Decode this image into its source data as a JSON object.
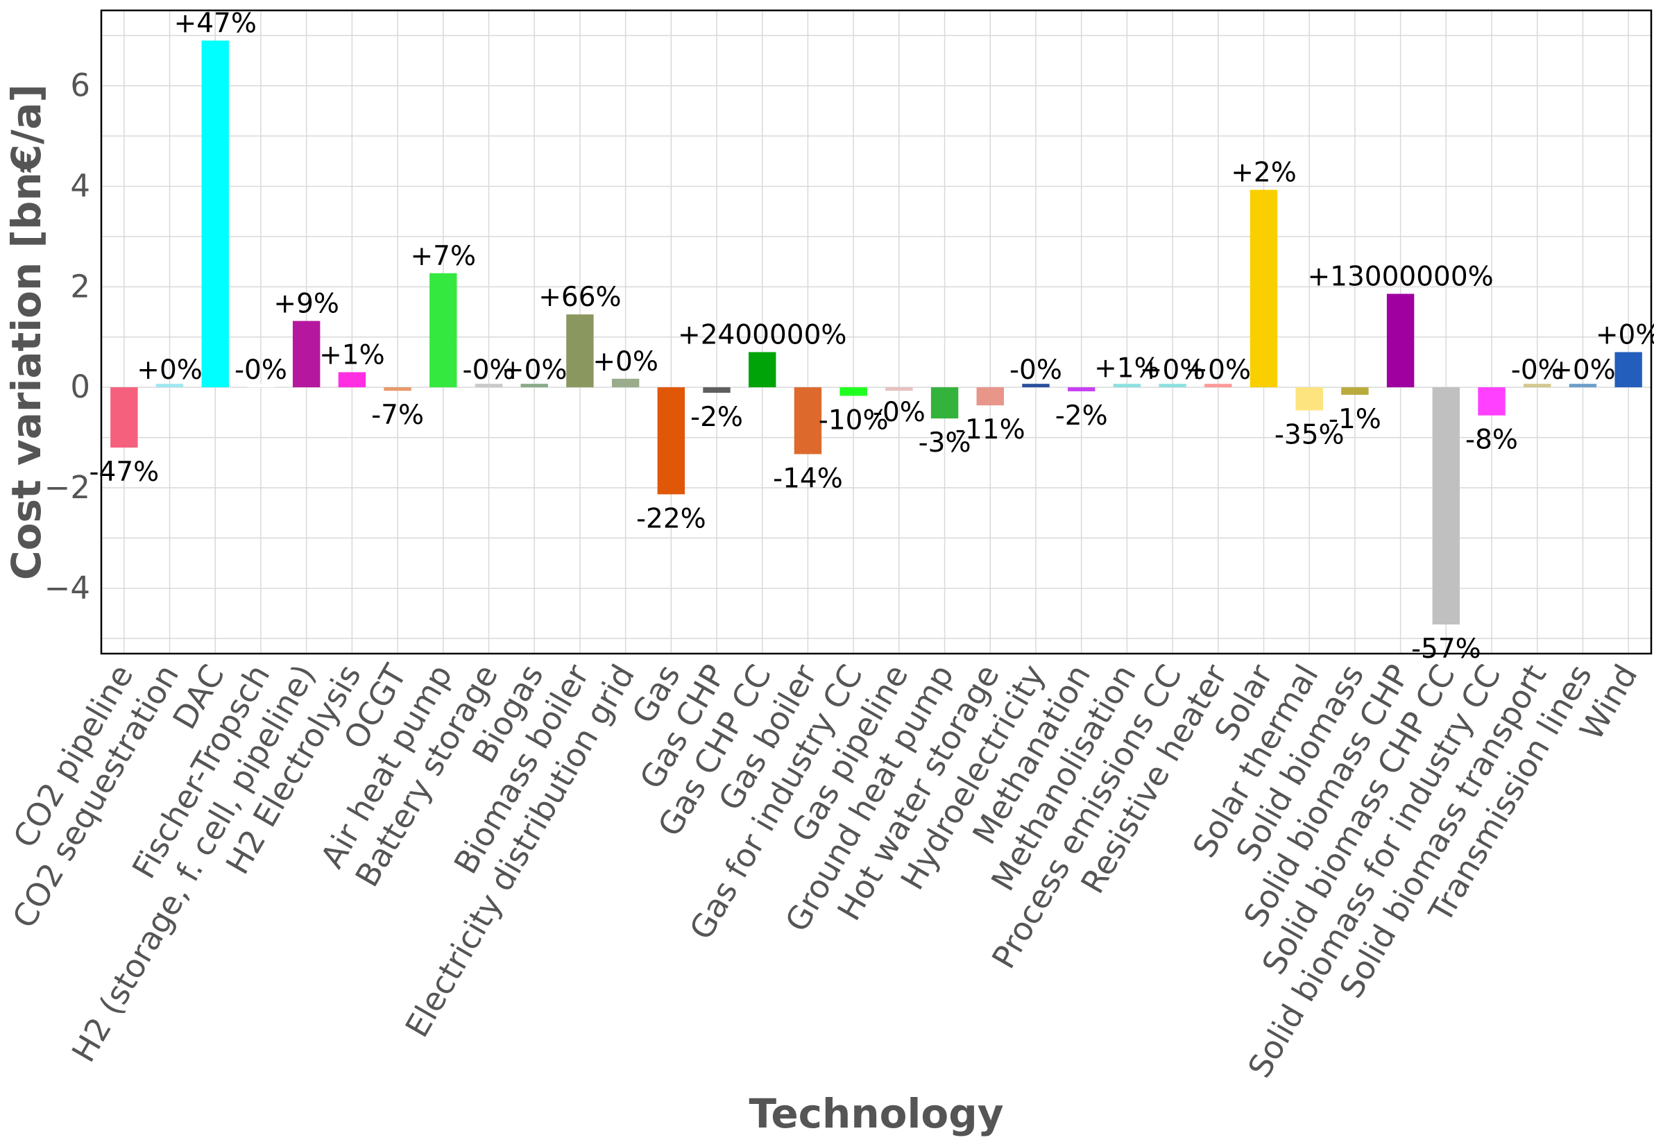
{
  "chart_data": {
    "type": "bar",
    "title": "",
    "xlabel": "Technology",
    "ylabel": "Cost variation [bn€/a]",
    "ylim": [
      -5.3,
      7.5
    ],
    "yticks": [
      -4,
      -2,
      0,
      2,
      4,
      6
    ],
    "ytick_labels": [
      "−4",
      "−2",
      "0",
      "2",
      "4",
      "6"
    ],
    "grid": true,
    "legend": "none",
    "categories": [
      "CO2 pipeline",
      "CO2 sequestration",
      "DAC",
      "Fischer-Tropsch",
      "H2 (storage, f. cell, pipeline)",
      "H2 Electrolysis",
      "OCGT",
      "Air heat pump",
      "Battery storage",
      "Biogas",
      "Biomass boiler",
      "Electricity distribution grid",
      "Gas",
      "Gas CHP",
      "Gas CHP CC",
      "Gas boiler",
      "Gas for industry CC",
      "Gas pipeline",
      "Ground heat pump",
      "Hot water storage",
      "Hydroelectricity",
      "Methanation",
      "Methanolisation",
      "Process emissions CC",
      "Resistive heater",
      "Solar",
      "Solar thermal",
      "Solid biomass",
      "Solid biomass CHP",
      "Solid biomass CHP CC",
      "Solid biomass for industry CC",
      "Solid biomass transport",
      "Transmission lines",
      "Wind"
    ],
    "values": [
      -1.2,
      0.0,
      6.9,
      0.0,
      1.32,
      0.3,
      -0.07,
      2.27,
      0.0,
      0.0,
      1.45,
      0.17,
      -2.13,
      -0.11,
      0.7,
      -1.33,
      -0.17,
      -0.01,
      -0.62,
      -0.36,
      0.0,
      -0.08,
      0.04,
      0.0,
      0.0,
      3.93,
      -0.46,
      -0.15,
      1.86,
      -4.72,
      -0.56,
      0.0,
      0.0,
      0.7
    ],
    "labels": [
      "-47%",
      "+0%",
      "+47%",
      "-0%",
      "+9%",
      "+1%",
      "-7%",
      "+7%",
      "-0%",
      "+0%",
      "+66%",
      "+0%",
      "-22%",
      "-2%",
      "+2400000%",
      "-14%",
      "-10%",
      "-0%",
      "-3%",
      "-11%",
      "-0%",
      "-2%",
      "+1%",
      "+0%",
      "+0%",
      "+2%",
      "-35%",
      "-1%",
      "+13000000%",
      "-57%",
      "-8%",
      "-0%",
      "+0%",
      "+0%"
    ],
    "colors": [
      "#f5607d",
      "#a1e6f0",
      "#00ffff",
      "#ffffff",
      "#b5179e",
      "#ff2ee2",
      "#e8996c",
      "#35e83f",
      "#c9c9c9",
      "#88aa88",
      "#8a9860",
      "#9aac8c",
      "#e05708",
      "#5e5e5e",
      "#00a308",
      "#dd6a2c",
      "#1fff1f",
      "#e6c0c0",
      "#33b33b",
      "#e8958a",
      "#2a4f9c",
      "#c840f2",
      "#8ee0e0",
      "#8ee0e0",
      "#ff9999",
      "#f9cf00",
      "#fde47e",
      "#baab3f",
      "#a000a0",
      "#c0c0c0",
      "#ff40ff",
      "#d2c890",
      "#6c9ec8",
      "#235ebc"
    ]
  }
}
